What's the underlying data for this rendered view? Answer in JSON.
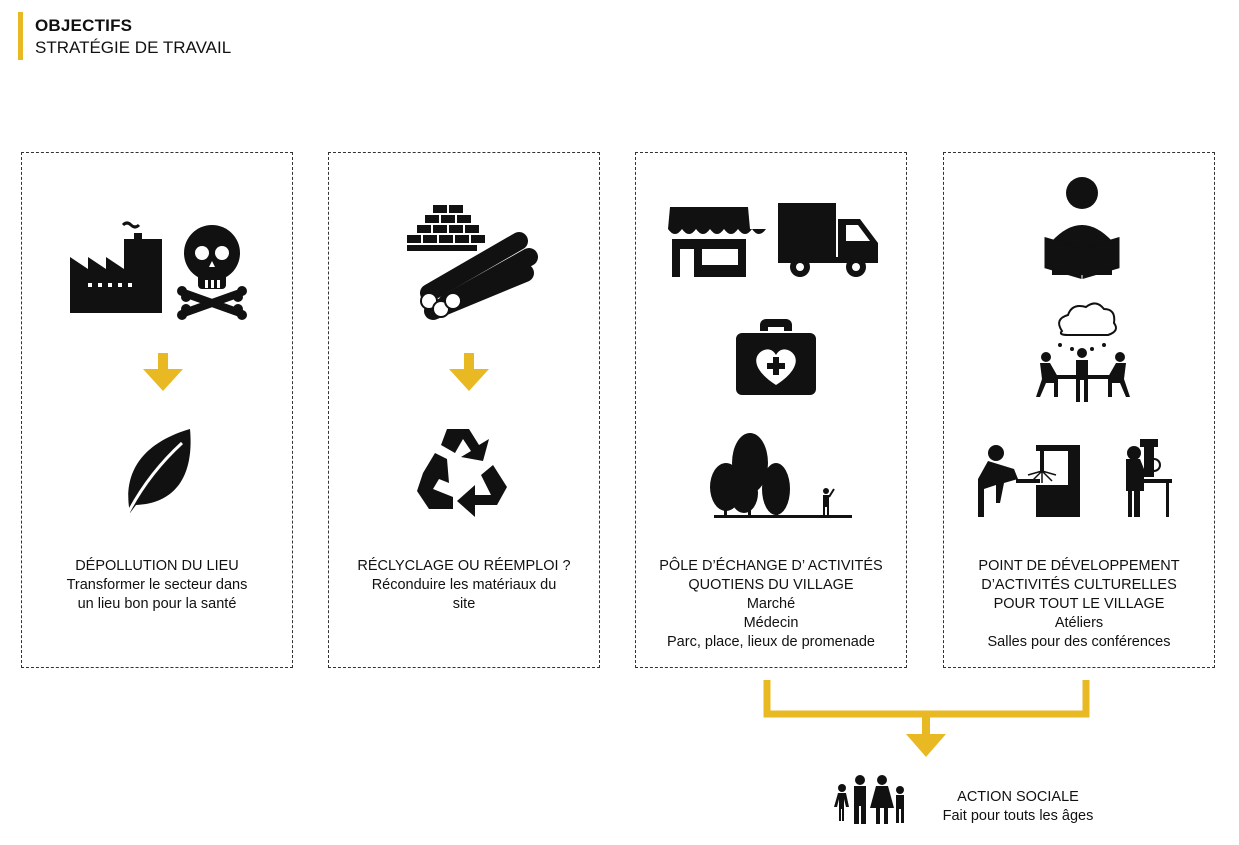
{
  "header": {
    "title": "OBJECTIFS",
    "subtitle": "STRATÉGIE DE TRAVAIL"
  },
  "accent_color": "#e8b923",
  "panels": [
    {
      "icons": [
        "factory-icon",
        "skull-crossbones-icon",
        "arrow-down-icon",
        "leaf-icon"
      ],
      "heading": "DÉPOLLUTION DU LIEU",
      "lines": [
        "Transformer le secteur dans",
        "un lieu bon pour la santé"
      ]
    },
    {
      "icons": [
        "bricks-icon",
        "pipes-icon",
        "arrow-down-icon",
        "recycle-icon"
      ],
      "heading": "RÉCLYCLAGE OU RÉEMPLOI ?",
      "lines": [
        "Réconduire les matériaux du",
        "site"
      ]
    },
    {
      "icons": [
        "shop-icon",
        "truck-icon",
        "medical-kit-icon",
        "park-icon"
      ],
      "heading": "PÔLE D’ÉCHANGE D’ ACTIVITÉS",
      "heading2": "QUOTIENS DU VILLAGE",
      "lines": [
        "Marché",
        "Médecin",
        "Parc, place, lieux de promenade"
      ]
    },
    {
      "icons": [
        "reader-icon",
        "discussion-icon",
        "workshop-machine-icon",
        "drill-press-icon"
      ],
      "heading": "POINT DE DÉVELOPPEMENT",
      "heading2": "D’ACTIVITÉS CULTURELLES",
      "heading3": "POUR TOUT LE VILLAGE",
      "lines": [
        "Atéliers",
        "Salles pour des conférences"
      ]
    }
  ],
  "footer": {
    "icon": "family-icon",
    "title": "ACTION SOCIALE",
    "subtitle": "Fait pour touts les âges"
  }
}
